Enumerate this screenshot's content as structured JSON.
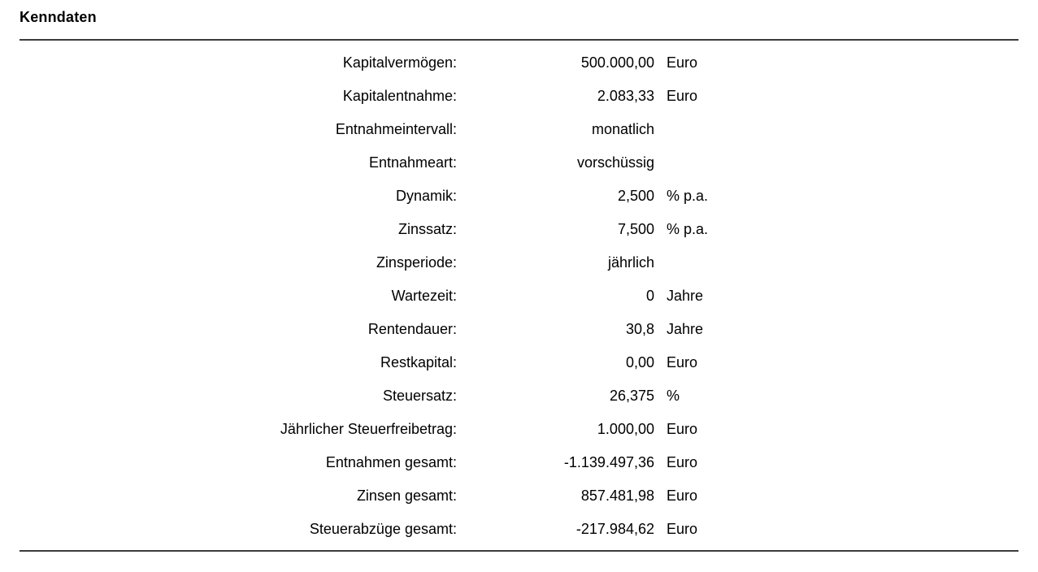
{
  "title": "Kenndaten",
  "colors": {
    "text": "#000000",
    "rule": "#3C3C3C",
    "background": "#FFFFFF"
  },
  "rows": [
    {
      "label": "Kapitalvermögen:",
      "value": "500.000,00",
      "unit": "Euro"
    },
    {
      "label": "Kapitalentnahme:",
      "value": "2.083,33",
      "unit": "Euro"
    },
    {
      "label": "Entnahmeintervall:",
      "value": "monatlich",
      "unit": ""
    },
    {
      "label": "Entnahmeart:",
      "value": "vorschüssig",
      "unit": ""
    },
    {
      "label": "Dynamik:",
      "value": "2,500",
      "unit": "% p.a."
    },
    {
      "label": "Zinssatz:",
      "value": "7,500",
      "unit": "% p.a."
    },
    {
      "label": "Zinsperiode:",
      "value": "jährlich",
      "unit": ""
    },
    {
      "label": "Wartezeit:",
      "value": "0",
      "unit": "Jahre"
    },
    {
      "label": "Rentendauer:",
      "value": "30,8",
      "unit": "Jahre"
    },
    {
      "label": "Restkapital:",
      "value": "0,00",
      "unit": "Euro"
    },
    {
      "label": "Steuersatz:",
      "value": "26,375",
      "unit": "%"
    },
    {
      "label": "Jährlicher Steuerfreibetrag:",
      "value": "1.000,00",
      "unit": "Euro"
    },
    {
      "label": "Entnahmen gesamt:",
      "value": "-1.139.497,36",
      "unit": "Euro"
    },
    {
      "label": "Zinsen gesamt:",
      "value": "857.481,98",
      "unit": "Euro"
    },
    {
      "label": "Steuerabzüge gesamt:",
      "value": "-217.984,62",
      "unit": "Euro"
    }
  ]
}
